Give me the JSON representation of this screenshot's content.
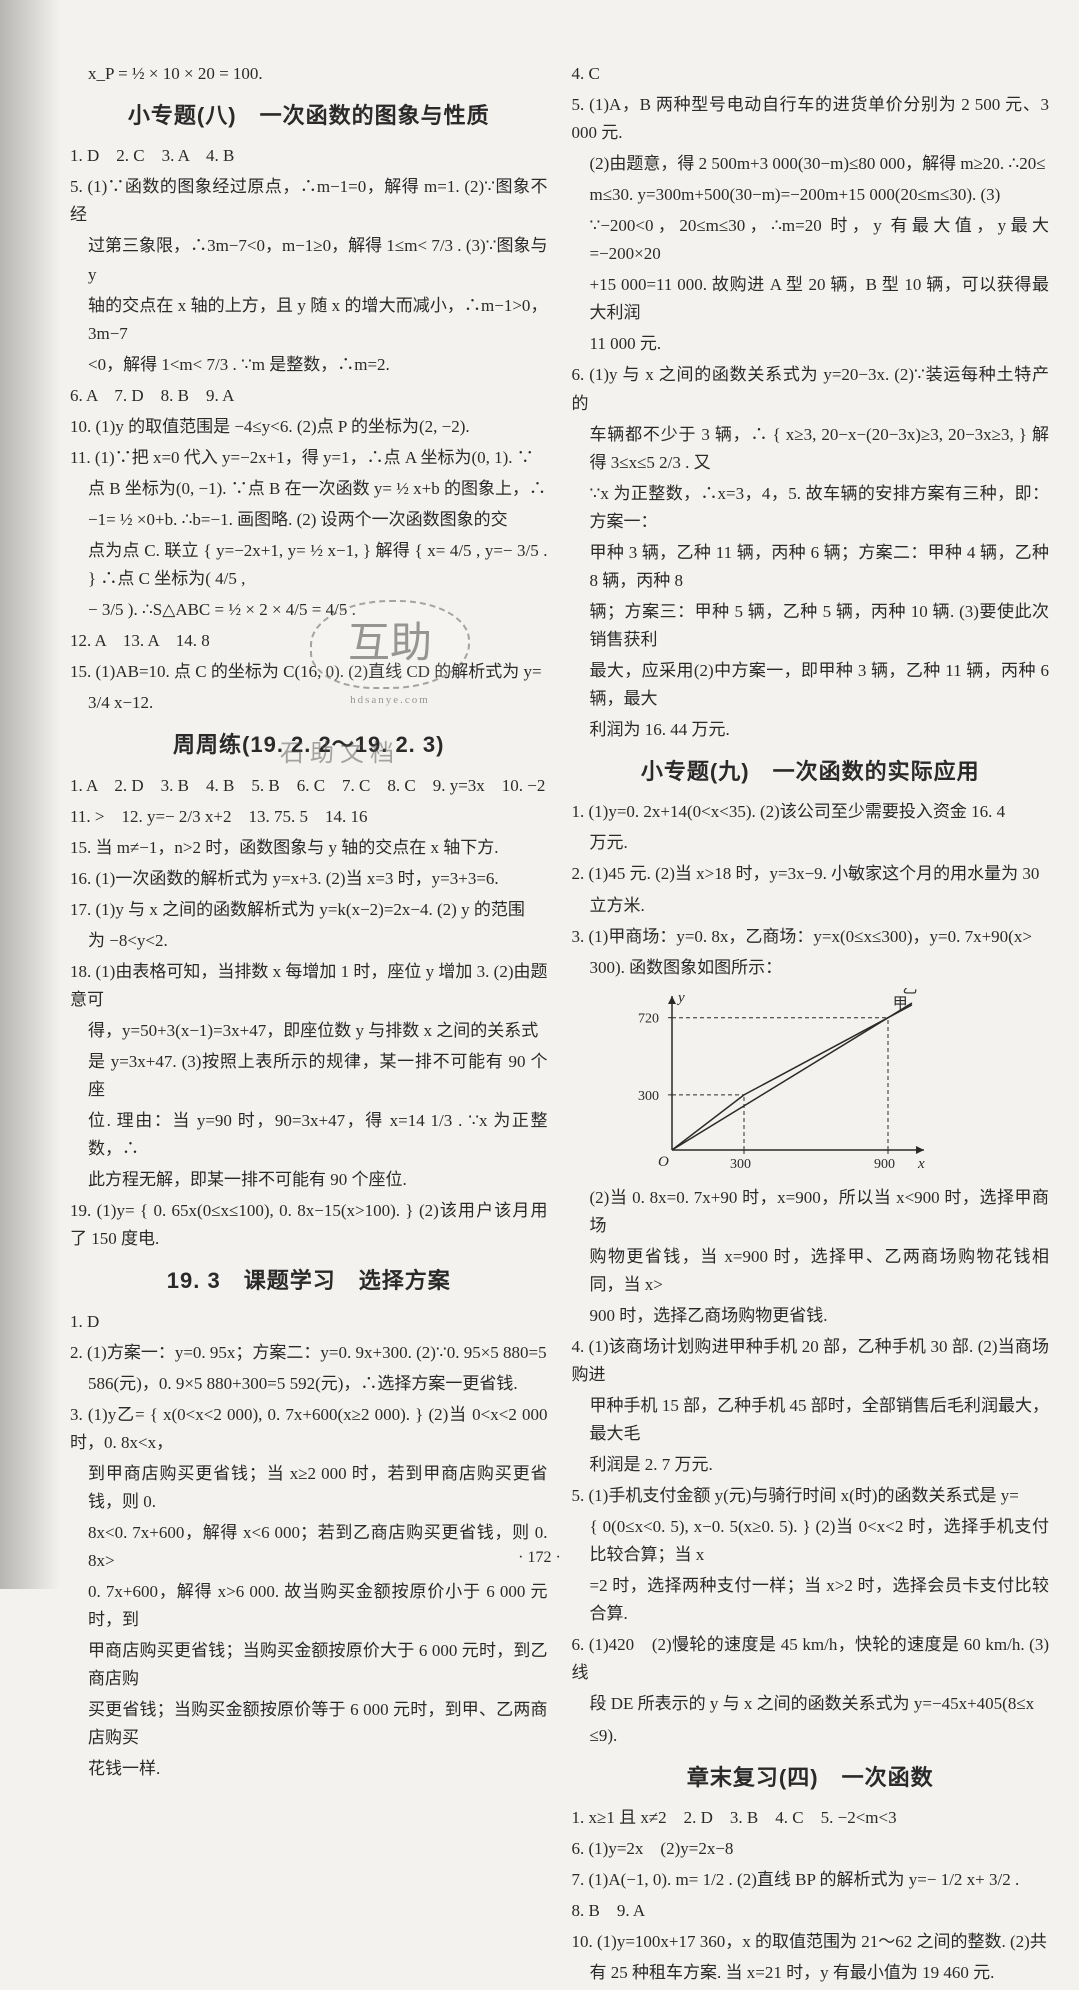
{
  "page_number": "· 172 ·",
  "watermark_main": "互助",
  "watermark_sub": "hdsanye.com",
  "watermark2": "石 助 文 档",
  "left": {
    "pre_line": "x_P = ½ × 10 × 20 = 100.",
    "h1": "小专题(八)　一次函数的图象与性质",
    "l1": "1. D　2. C　3. A　4. B",
    "l5a": "5. (1)∵函数的图象经过原点，∴m−1=0，解得 m=1. (2)∵图象不经",
    "l5b": "过第三象限，∴3m−7<0，m−1≥0，解得 1≤m< 7/3 .  (3)∵图象与 y",
    "l5c": "轴的交点在 x 轴的上方，且 y 随 x 的增大而减小，∴m−1>0，3m−7",
    "l5d": "<0，解得 1<m< 7/3 . ∵m 是整数，∴m=2.",
    "l6": "6. A　7. D　8. B　9. A",
    "l10": "10. (1)y 的取值范围是 −4≤y<6. (2)点 P 的坐标为(2, −2).",
    "l11a": "11. (1)∵把 x=0 代入 y=−2x+1，得 y=1，∴点 A 坐标为(0, 1). ∵",
    "l11b": "点 B 坐标为(0, −1). ∵点 B 在一次函数 y= ½ x+b 的图象上，∴",
    "l11c": "−1= ½ ×0+b. ∴b=−1. 画图略. (2) 设两个一次函数图象的交",
    "l11d": "点为点 C. 联立 { y=−2x+1,  y= ½ x−1, } 解得 { x= 4/5 ,  y=− 3/5 . } ∴点 C 坐标为( 4/5 ,",
    "l11e": "− 3/5 ). ∴S△ABC = ½ × 2 × 4/5 = 4/5 .",
    "l12": "12. A　13. A　14. 8",
    "l15a": "15. (1)AB=10. 点 C 的坐标为 C(16, 0). (2)直线 CD 的解析式为 y=",
    "l15b": "3/4 x−12.",
    "h2": "周周练(19. 2. 2～19. 2. 3)",
    "z1": "1. A　2. D　3. B　4. B　5. B　6. C　7. C　8. C　9. y=3x　10. −2",
    "z11": "11. >　12. y=− 2/3 x+2　13. 75. 5　14. 16",
    "z15": "15. 当 m≠−1，n>2 时，函数图象与 y 轴的交点在 x 轴下方.",
    "z16": "16. (1)一次函数的解析式为 y=x+3. (2)当 x=3 时，y=3+3=6.",
    "z17a": "17. (1)y 与 x 之间的函数解析式为 y=k(x−2)=2x−4. (2) y 的范围",
    "z17b": "为 −8<y<2.",
    "z18a": "18. (1)由表格可知，当排数 x 每增加 1 时，座位 y 增加 3. (2)由题意可",
    "z18b": "得，y=50+3(x−1)=3x+47，即座位数 y 与排数 x 之间的关系式",
    "z18c": "是 y=3x+47. (3)按照上表所示的规律，某一排不可能有 90 个座",
    "z18d": "位. 理由：当 y=90 时，90=3x+47，得 x=14 1/3 . ∵x 为正整数，∴",
    "z18e": "此方程无解，即某一排不可能有 90 个座位.",
    "z19a": "19. (1)y= { 0. 65x(0≤x≤100),  0. 8x−15(x>100). } (2)该用户该月用了 150 度电.",
    "h3": "19. 3　课题学习　选择方案",
    "k1": "1. D",
    "k2a": "2. (1)方案一：y=0. 95x；方案二：y=0. 9x+300. (2)∵0. 95×5 880=5",
    "k2b": "586(元)，0. 9×5 880+300=5 592(元)，∴选择方案一更省钱.",
    "k3a": "3. (1)y乙= { x(0<x<2 000),  0. 7x+600(x≥2 000). } (2)当 0<x<2 000 时，0. 8x<x，",
    "k3b": "到甲商店购买更省钱；当 x≥2 000 时，若到甲商店购买更省钱，则 0.",
    "k3c": "8x<0. 7x+600，解得 x<6 000；若到乙商店购买更省钱，则 0. 8x>",
    "k3d": "0. 7x+600，解得 x>6 000. 故当购买金额按原价小于 6 000 元时，到",
    "k3e": "甲商店购买更省钱；当购买金额按原价大于 6 000 元时，到乙商店购",
    "k3f": "买更省钱；当购买金额按原价等于 6 000 元时，到甲、乙两商店购买",
    "k3g": "花钱一样."
  },
  "right": {
    "l4": "4. C",
    "l5a": "5. (1)A，B 两种型号电动自行车的进货单价分别为 2 500 元、3 000 元.",
    "l5b": "(2)由题意，得 2 500m+3 000(30−m)≤80 000，解得 m≥20. ∴20≤",
    "l5c": "m≤30. y=300m+500(30−m)=−200m+15 000(20≤m≤30). (3)",
    "l5d": "∵−200<0，20≤m≤30，∴m=20 时，y 有最大值，y最大 =−200×20",
    "l5e": "+15 000=11 000. 故购进 A 型 20 辆，B 型 10 辆，可以获得最大利润",
    "l5f": "11 000 元.",
    "l6a": "6. (1)y 与 x 之间的函数关系式为 y=20−3x. (2)∵装运每种土特产的",
    "l6b": "车辆都不少于 3 辆，∴ { x≥3,  20−x−(20−3x)≥3,  20−3x≥3, } 解得 3≤x≤5 2/3 . 又",
    "l6c": "∵x 为正整数，∴x=3，4，5. 故车辆的安排方案有三种，即：方案一：",
    "l6d": "甲种 3 辆，乙种 11 辆，丙种 6 辆；方案二：甲种 4 辆，乙种 8 辆，丙种 8",
    "l6e": "辆；方案三：甲种 5 辆，乙种 5 辆，丙种 10 辆. (3)要使此次销售获利",
    "l6f": "最大，应采用(2)中方案一，即甲种 3 辆，乙种 11 辆，丙种 6 辆，最大",
    "l6g": "利润为 16. 44 万元.",
    "h1": "小专题(九)　一次函数的实际应用",
    "j1a": "1. (1)y=0. 2x+14(0<x<35). (2)该公司至少需要投入资金 16. 4",
    "j1b": "万元.",
    "j2a": "2. (1)45 元. (2)当 x>18 时，y=3x−9. 小敏家这个月的用水量为 30",
    "j2b": "立方米.",
    "j3a": "3. (1)甲商场：y=0. 8x，乙商场：y=x(0≤x≤300)，y=0. 7x+90(x>",
    "j3b": "300). 函数图象如图所示：",
    "chart": {
      "x_axis": "x",
      "y_axis": "y",
      "x_ticks": [
        "300",
        "900"
      ],
      "y_ticks": [
        "300",
        "720"
      ],
      "origin": "O",
      "labels": {
        "jia": "甲",
        "yi": "乙"
      },
      "axis_color": "#2a2a2a",
      "line_color": "#2a2a2a",
      "dash_color": "#2a2a2a",
      "background": "#f4f2ef",
      "stroke_width": 1.5,
      "dash_pattern": "4 3",
      "x_range": [
        0,
        1000
      ],
      "y_range": [
        0,
        800
      ],
      "series_jia": [
        [
          0,
          0
        ],
        [
          1000,
          800
        ]
      ],
      "series_yi": [
        [
          0,
          0
        ],
        [
          300,
          300
        ],
        [
          1000,
          790
        ]
      ]
    },
    "j3c": "(2)当 0. 8x=0. 7x+90 时，x=900，所以当 x<900 时，选择甲商场",
    "j3d": "购物更省钱，当 x=900 时，选择甲、乙两商场购物花钱相同，当 x>",
    "j3e": "900 时，选择乙商场购物更省钱.",
    "j4a": "4. (1)该商场计划购进甲种手机 20 部，乙种手机 30 部. (2)当商场购进",
    "j4b": "甲种手机 15 部，乙种手机 45 部时，全部销售后毛利润最大，最大毛",
    "j4c": "利润是 2. 7 万元.",
    "j5a": "5. (1)手机支付金额 y(元)与骑行时间 x(时)的函数关系式是 y=",
    "j5b": "{ 0(0≤x<0. 5),  x−0. 5(x≥0. 5). } (2)当 0<x<2 时，选择手机支付比较合算；当 x",
    "j5c": "=2 时，选择两种支付一样；当 x>2 时，选择会员卡支付比较合算.",
    "j6a": "6. (1)420　(2)慢轮的速度是 45 km/h，快轮的速度是 60 km/h. (3)线",
    "j6b": "段 DE 所表示的 y 与 x 之间的函数关系式为 y=−45x+405(8≤x",
    "j6c": "≤9).",
    "h2": "章末复习(四)　一次函数",
    "m1": "1. x≥1 且 x≠2　2. D　3. B　4. C　5. −2<m<3",
    "m6": "6. (1)y=2x　(2)y=2x−8",
    "m7": "7. (1)A(−1, 0). m= 1/2 . (2)直线 BP 的解析式为 y=− 1/2 x+ 3/2 .",
    "m8": "8. B　9. A",
    "m10a": "10. (1)y=100x+17 360，x 的取值范围为 21～62 之间的整数. (2)共",
    "m10b": "有 25 种租车方案. 当 x=21 时，y 有最小值为 19 460 元."
  }
}
